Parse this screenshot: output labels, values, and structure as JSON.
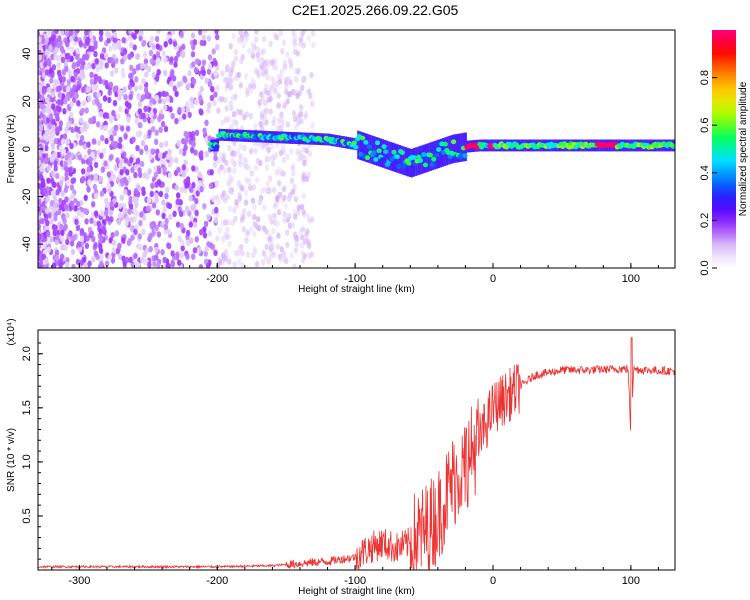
{
  "chart_data": [
    {
      "type": "heatmap",
      "title": "C2E1.2025.266.09.22.G05",
      "xlabel": "Height of straight line (km)",
      "ylabel": "Frequency (Hz)",
      "xlim": [
        -330,
        132
      ],
      "ylim": [
        -50,
        50
      ],
      "xticks": [
        -300,
        -200,
        -100,
        0,
        100
      ],
      "yticks": [
        -40,
        -20,
        0,
        20,
        40
      ],
      "colorbar": {
        "label": "Normalized spectral amplitude",
        "range": [
          0.0,
          1.0
        ],
        "ticks": [
          0.0,
          0.2,
          0.4,
          0.6,
          0.8
        ],
        "tick_labels": [
          "0.0",
          "0.2",
          "0.4",
          "0.6",
          "0.8"
        ],
        "colormap": [
          "#ffffff",
          "#ddc6f7",
          "#9b30ff",
          "#3a00ff",
          "#0070ff",
          "#00e5ff",
          "#00ff60",
          "#a0ff00",
          "#ffe000",
          "#ff8000",
          "#ff0000",
          "#ff0080"
        ]
      },
      "ridge": {
        "x": [
          -200,
          -180,
          -160,
          -140,
          -120,
          -100,
          -90,
          -80,
          -70,
          -60,
          -50,
          -40,
          -30,
          -20,
          -10,
          0,
          20,
          40,
          60,
          80,
          100,
          120,
          132
        ],
        "y": [
          6,
          5.5,
          5,
          4.5,
          4,
          2,
          0,
          -2,
          -4,
          -6,
          -4,
          -2,
          0,
          1,
          1.5,
          1.5,
          1.5,
          1.5,
          1.5,
          1.5,
          1.5,
          1.5,
          1.5
        ]
      }
    },
    {
      "type": "line",
      "xlabel": "Height of straight line (km)",
      "ylabel": "SNR (10 * v/v)",
      "scale_label": "(x10⁴)",
      "xlim": [
        -330,
        132
      ],
      "ylim": [
        0,
        2.22
      ],
      "xticks": [
        -300,
        -200,
        -100,
        0,
        100
      ],
      "yticks": [
        0.5,
        1.0,
        1.5,
        2.0
      ],
      "ytick_labels": [
        "0.5",
        "1.0",
        "1.5",
        "2.0"
      ],
      "line_color": "#ee3333",
      "series": [
        {
          "x": [
            -330,
            -300,
            -250,
            -200,
            -160,
            -140,
            -120,
            -100,
            -90,
            -80,
            -70,
            -60,
            -50,
            -40,
            -30,
            -20,
            -10,
            0,
            10,
            20,
            30,
            50,
            70,
            90,
            98,
            100,
            102,
            110,
            132
          ],
          "values": [
            0.03,
            0.03,
            0.03,
            0.03,
            0.04,
            0.06,
            0.08,
            0.12,
            0.2,
            0.25,
            0.2,
            0.25,
            0.35,
            0.5,
            0.8,
            1.0,
            1.2,
            1.5,
            1.6,
            1.7,
            1.8,
            1.85,
            1.85,
            1.86,
            1.86,
            1.25,
            1.86,
            1.85,
            1.84
          ]
        }
      ]
    }
  ]
}
